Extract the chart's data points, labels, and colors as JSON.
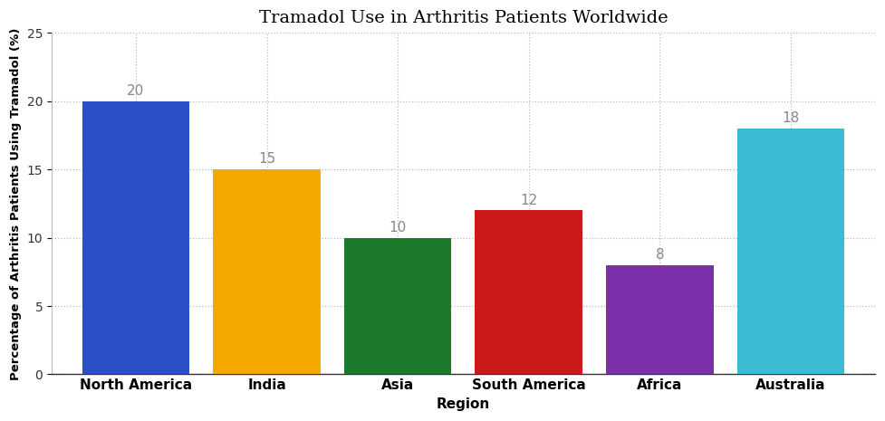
{
  "title": "Tramadol Use in Arthritis Patients Worldwide",
  "xlabel": "Region",
  "ylabel": "Percentage of Arthritis Patients Using Tramadol (%)",
  "categories": [
    "North America",
    "India",
    "Asia",
    "South America",
    "Africa",
    "Australia"
  ],
  "values": [
    20,
    15,
    10,
    12,
    8,
    18
  ],
  "bar_colors": [
    "#2b4fc7",
    "#f5a800",
    "#1a7a2a",
    "#cc1a1a",
    "#7b2fa8",
    "#3bbcd4"
  ],
  "ylim": [
    0,
    25
  ],
  "yticks": [
    0,
    5,
    10,
    15,
    20,
    25
  ],
  "title_fontsize": 14,
  "label_fontsize": 11,
  "tick_fontsize": 11,
  "annotation_fontsize": 11,
  "annotation_color": "#888888",
  "background_color": "#ffffff",
  "grid_color": "#bbbbbb",
  "grid_linestyle": ":",
  "bar_width": 0.82
}
